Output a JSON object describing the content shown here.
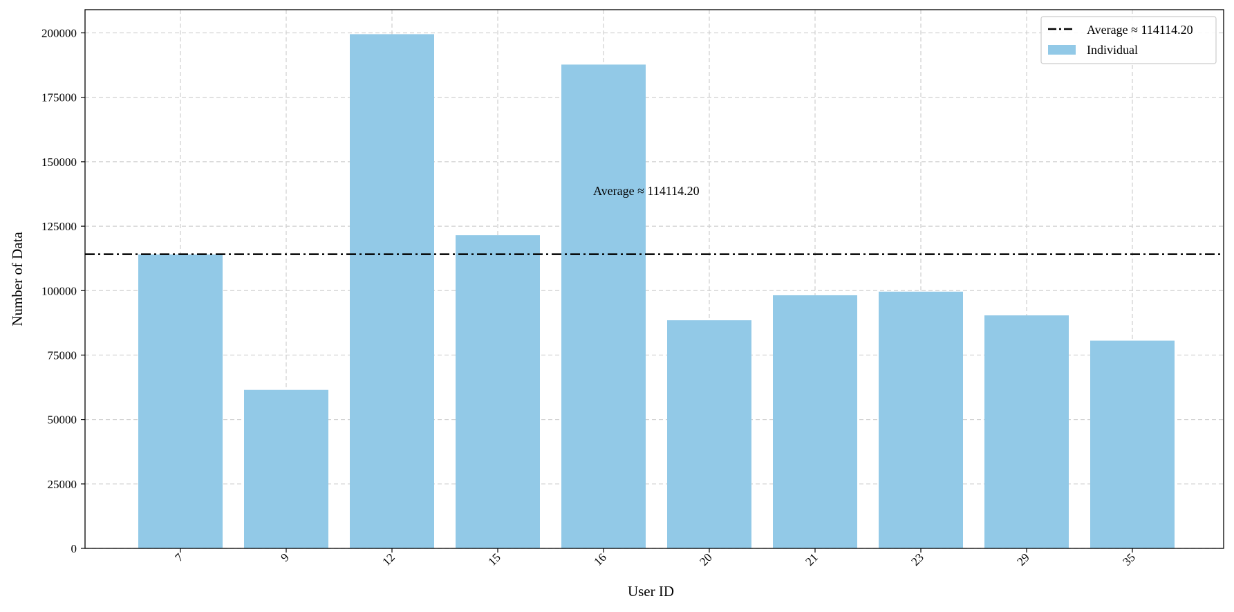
{
  "chart_data": {
    "type": "bar",
    "xlabel": "User ID",
    "ylabel": "Number of Data",
    "categories": [
      "7",
      "9",
      "12",
      "15",
      "16",
      "20",
      "21",
      "23",
      "29",
      "35"
    ],
    "values": [
      114000,
      61500,
      199500,
      121500,
      187700,
      88500,
      98200,
      99600,
      90400,
      80600
    ],
    "ylim": [
      0,
      209000
    ],
    "yticks": [
      "0",
      "25000",
      "50000",
      "75000",
      "100000",
      "125000",
      "150000",
      "175000",
      "200000"
    ],
    "ytick_values": [
      0,
      25000,
      50000,
      75000,
      100000,
      125000,
      150000,
      175000,
      200000
    ],
    "grid": true,
    "legend_position": "top-right",
    "bar_color": "#92c9e7",
    "average": {
      "value": 114114.2,
      "label": "Average ≈ 114114.20",
      "annotation": "Average ≈ 114114.20"
    },
    "legend": {
      "average_label": "Average ≈ 114114.20",
      "bars_label": "Individual"
    }
  }
}
